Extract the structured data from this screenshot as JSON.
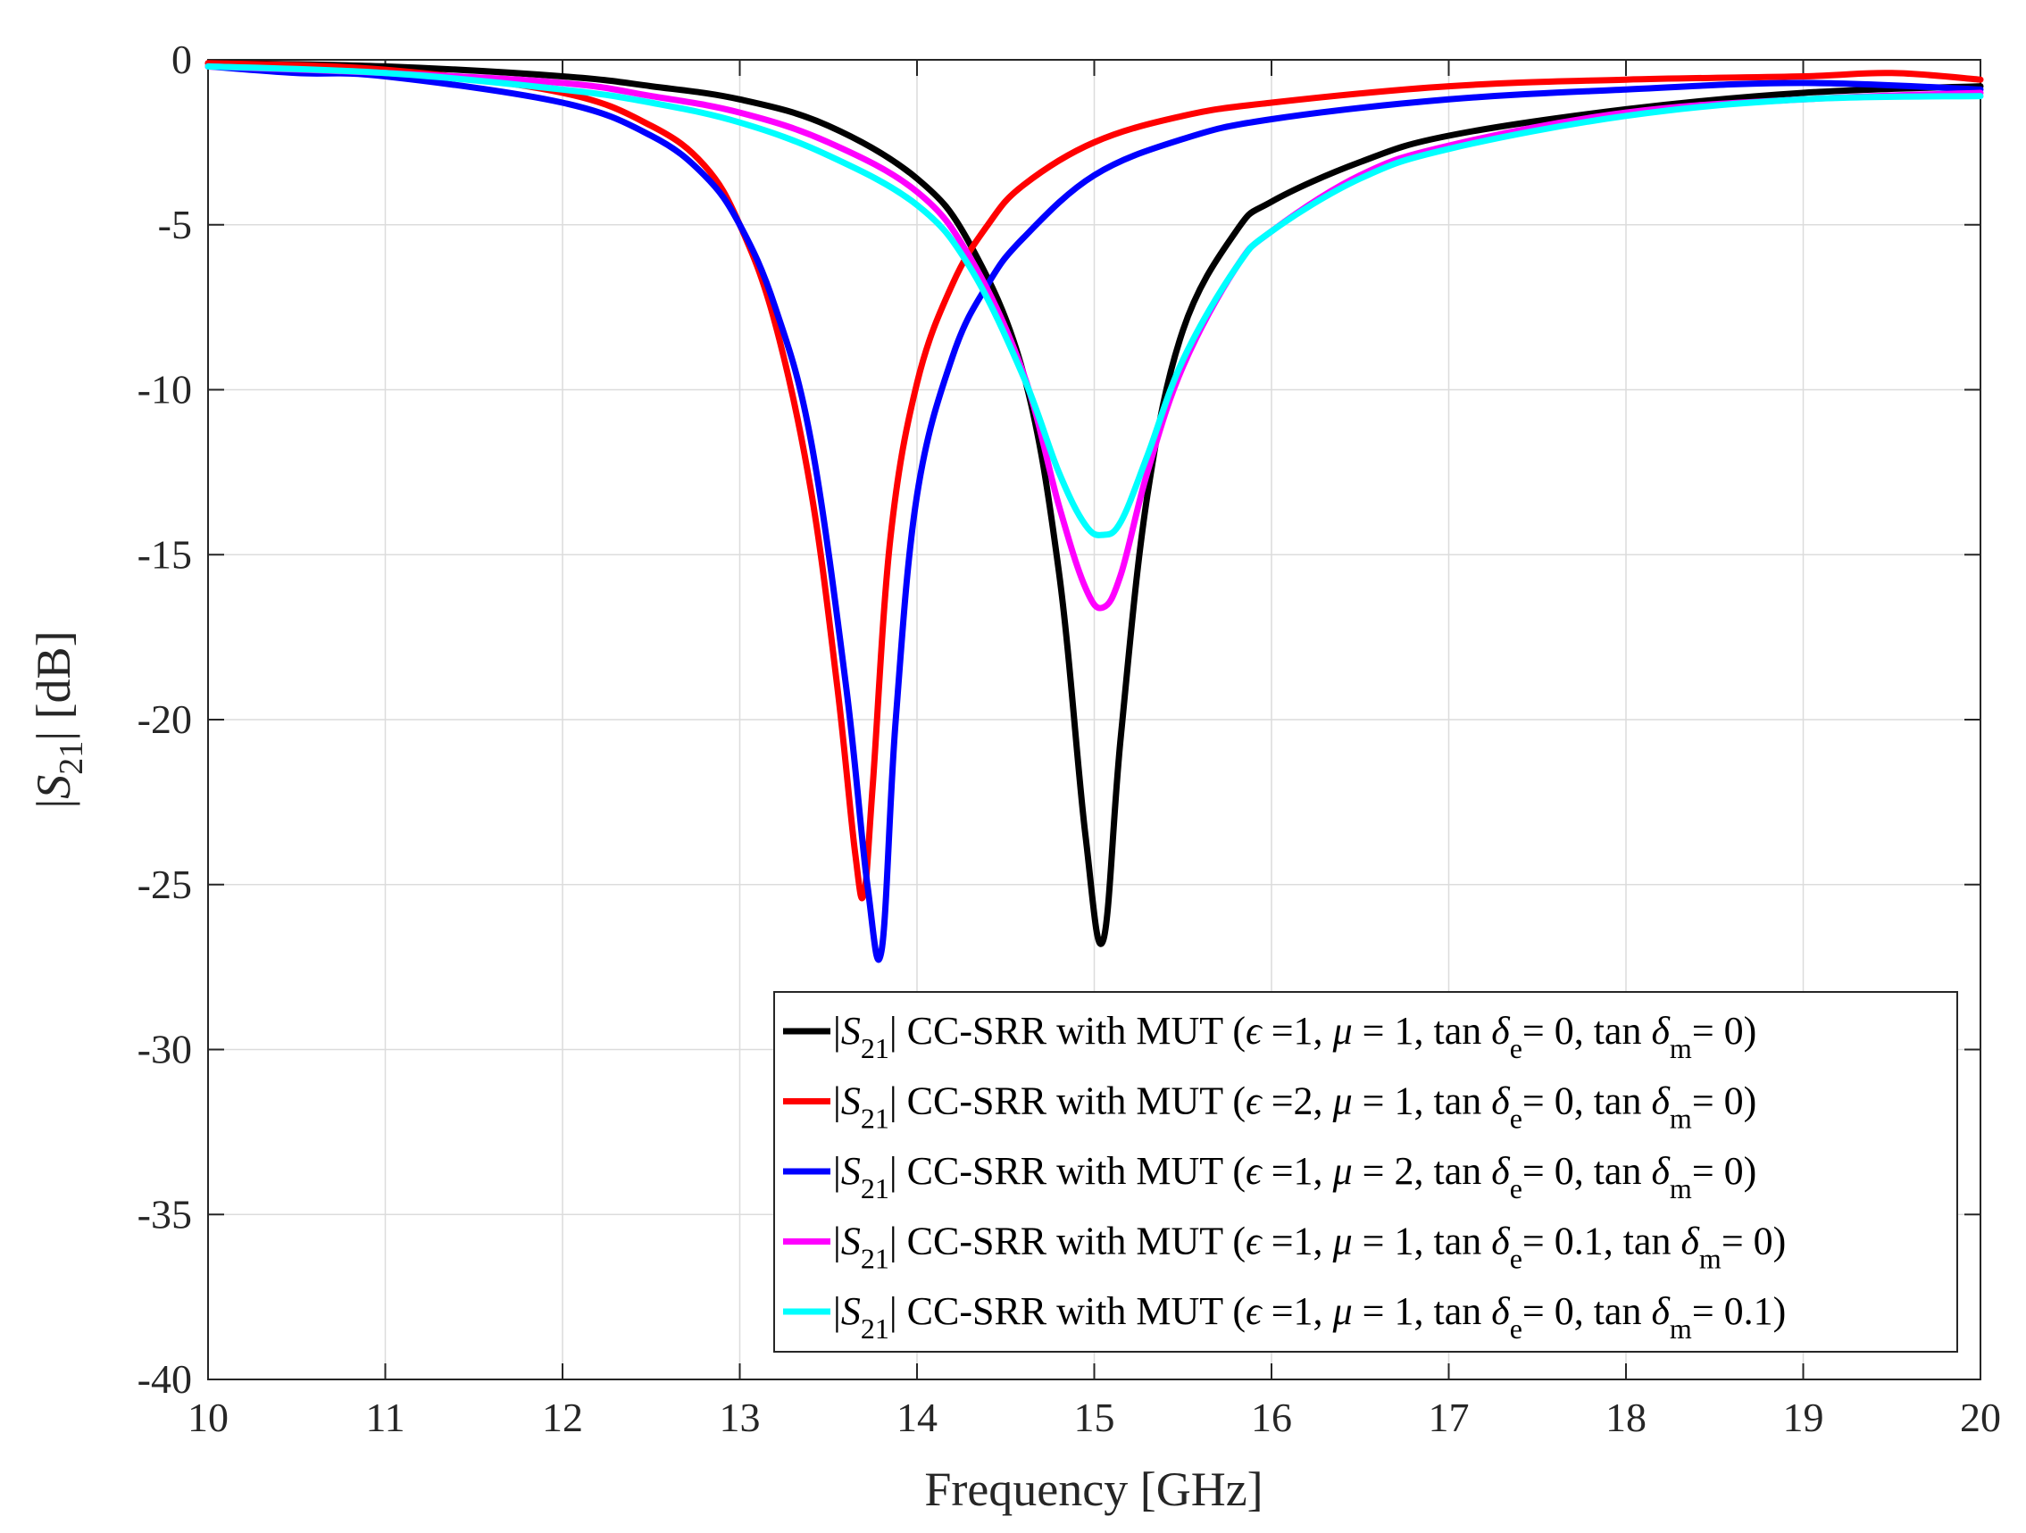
{
  "chart_data": {
    "type": "line",
    "title": "",
    "xlabel": "Frequency [GHz]",
    "ylabel": {
      "pre": "|",
      "italic": "S",
      "sub": "21",
      "post": "| [dB]"
    },
    "xlim": [
      10,
      20
    ],
    "ylim": [
      -40,
      0
    ],
    "xticks": [
      10,
      11,
      12,
      13,
      14,
      15,
      16,
      17,
      18,
      19,
      20
    ],
    "yticks": [
      0,
      -5,
      -10,
      -15,
      -20,
      -25,
      -30,
      -35,
      -40
    ],
    "xtick_labels": [
      "10",
      "11",
      "12",
      "13",
      "14",
      "15",
      "16",
      "17",
      "18",
      "19",
      "20"
    ],
    "ytick_labels": [
      "0",
      "-5",
      "-10",
      "-15",
      "-20",
      "-25",
      "-30",
      "-35",
      "-40"
    ],
    "grid": true,
    "legend_position": "bottom-right",
    "series": [
      {
        "name": "|S21| CC-SRR with MUT (ϵ =1, μ = 1, tan δe= 0, tan δm= 0)",
        "legend": {
          "prefix": "|",
          "s": "S",
          "s_sub": "21",
          "middle": "| CC-SRR with MUT (",
          "eps": "ϵ",
          "mid2": " =1, ",
          "mu": "μ",
          "mid3": " = 1, tan ",
          "d1": "δ",
          "d1_sub": "e",
          "mid4": "= 0, tan ",
          "d2": "δ",
          "d2_sub": "m",
          "end": "= 0)"
        },
        "color": "#000000",
        "x": [
          10,
          11,
          12,
          12.5,
          13,
          13.5,
          14,
          14.3,
          14.6,
          14.8,
          14.95,
          15.05,
          15.15,
          15.3,
          15.5,
          15.8,
          16,
          16.5,
          17,
          18,
          19,
          20
        ],
        "y": [
          -0.1,
          -0.2,
          -0.5,
          -0.8,
          -1.2,
          -2.0,
          -3.6,
          -5.6,
          -9.5,
          -15.5,
          -23.5,
          -26.7,
          -20.5,
          -13.2,
          -8.2,
          -5.2,
          -4.3,
          -3.1,
          -2.3,
          -1.5,
          -1.0,
          -0.8
        ]
      },
      {
        "name": "|S21| CC-SRR with MUT (ϵ =2, μ = 1, tan δe= 0, tan δm= 0)",
        "legend": {
          "prefix": "|",
          "s": "S",
          "s_sub": "21",
          "middle": "| CC-SRR with MUT (",
          "eps": "ϵ",
          "mid2": " =2, ",
          "mu": "μ",
          "mid3": " = 1, tan ",
          "d1": "δ",
          "d1_sub": "e",
          "mid4": "= 0, tan ",
          "d2": "δ",
          "d2_sub": "m",
          "end": "= 0)"
        },
        "color": "#ff0000",
        "x": [
          10,
          11,
          12,
          12.5,
          12.8,
          13,
          13.2,
          13.4,
          13.55,
          13.65,
          13.7,
          13.75,
          13.85,
          14,
          14.2,
          14.4,
          14.6,
          15,
          15.5,
          16,
          17,
          18,
          19,
          19.5,
          20
        ],
        "y": [
          -0.1,
          -0.3,
          -1.0,
          -2.0,
          -3.2,
          -5.0,
          -8.0,
          -13.0,
          -19.0,
          -24.0,
          -25.3,
          -22.0,
          -14.5,
          -9.8,
          -6.8,
          -5.0,
          -3.8,
          -2.5,
          -1.7,
          -1.3,
          -0.8,
          -0.6,
          -0.5,
          -0.4,
          -0.6
        ]
      },
      {
        "name": "|S21| CC-SRR with MUT (ϵ =1, μ = 2, tan δe= 0, tan δm= 0)",
        "legend": {
          "prefix": "|",
          "s": "S",
          "s_sub": "21",
          "middle": "| CC-SRR with MUT (",
          "eps": "ϵ",
          "mid2": " =1, ",
          "mu": "μ",
          "mid3": " = 2, tan ",
          "d1": "δ",
          "d1_sub": "e",
          "mid4": "= 0, tan ",
          "d2": "δ",
          "d2_sub": "m",
          "end": "= 0)"
        },
        "color": "#0000ff",
        "x": [
          10,
          10.5,
          11,
          12,
          12.5,
          12.8,
          13,
          13.2,
          13.4,
          13.6,
          13.72,
          13.8,
          13.88,
          14,
          14.2,
          14.4,
          14.6,
          15,
          15.5,
          16,
          17,
          18,
          19,
          20
        ],
        "y": [
          -0.2,
          -0.4,
          -0.5,
          -1.3,
          -2.3,
          -3.5,
          -5.0,
          -7.5,
          -11.5,
          -19.0,
          -25.0,
          -27.0,
          -20.0,
          -13.2,
          -9.0,
          -6.8,
          -5.4,
          -3.5,
          -2.4,
          -1.8,
          -1.2,
          -0.9,
          -0.7,
          -0.9
        ]
      },
      {
        "name": "|S21| CC-SRR with MUT (ϵ =1, μ = 1, tan δe= 0.1, tan δm= 0)",
        "legend": {
          "prefix": "|",
          "s": "S",
          "s_sub": "21",
          "middle": "| CC-SRR with MUT (",
          "eps": "ϵ",
          "mid2": " =1, ",
          "mu": "μ",
          "mid3": " = 1, tan ",
          "d1": "δ",
          "d1_sub": "e",
          "mid4": "= 0.1, tan ",
          "d2": "δ",
          "d2_sub": "m",
          "end": "= 0)"
        },
        "color": "#ff00ff",
        "x": [
          10,
          11,
          12,
          12.5,
          13,
          13.5,
          14,
          14.3,
          14.6,
          14.8,
          14.95,
          15.05,
          15.15,
          15.3,
          15.5,
          15.8,
          16,
          16.5,
          17,
          18,
          19,
          20
        ],
        "y": [
          -0.2,
          -0.4,
          -0.7,
          -1.1,
          -1.6,
          -2.5,
          -4.0,
          -6.0,
          -9.5,
          -13.5,
          -16.0,
          -16.6,
          -15.6,
          -12.5,
          -9.3,
          -6.3,
          -5.2,
          -3.5,
          -2.6,
          -1.6,
          -1.2,
          -1.0
        ]
      },
      {
        "name": "|S21| CC-SRR with MUT (ϵ =1, μ = 1, tan δe= 0, tan δm= 0.1)",
        "legend": {
          "prefix": "|",
          "s": "S",
          "s_sub": "21",
          "middle": "| CC-SRR with MUT (",
          "eps": "ϵ",
          "mid2": " =1, ",
          "mu": "μ",
          "mid3": " = 1, tan ",
          "d1": "δ",
          "d1_sub": "e",
          "mid4": "= 0, tan ",
          "d2": "δ",
          "d2_sub": "m",
          "end": "= 0.1)"
        },
        "color": "#00ffff",
        "x": [
          10,
          11,
          12,
          12.5,
          13,
          13.5,
          14,
          14.3,
          14.6,
          14.8,
          14.95,
          15.05,
          15.15,
          15.3,
          15.5,
          15.8,
          16,
          16.5,
          17,
          18,
          19,
          20
        ],
        "y": [
          -0.2,
          -0.4,
          -0.9,
          -1.3,
          -1.9,
          -2.9,
          -4.4,
          -6.3,
          -9.6,
          -12.5,
          -14.1,
          -14.4,
          -14.0,
          -12.0,
          -9.1,
          -6.3,
          -5.2,
          -3.6,
          -2.7,
          -1.7,
          -1.2,
          -1.1
        ]
      }
    ]
  }
}
